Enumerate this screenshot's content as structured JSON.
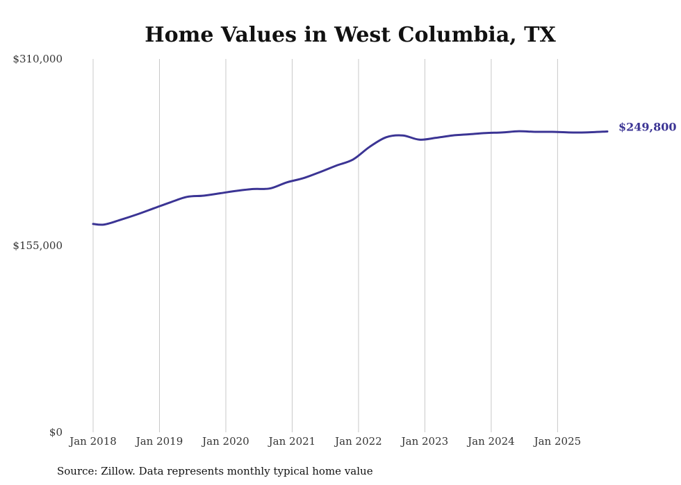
{
  "chart_data": {
    "type": "line",
    "title": "Home Values in West Columbia, TX",
    "xlabel": "",
    "ylabel": "",
    "ylim": [
      0,
      310000
    ],
    "yticks": [
      {
        "value": 0,
        "label": "$0"
      },
      {
        "value": 155000,
        "label": "$155,000"
      },
      {
        "value": 310000,
        "label": "$310,000"
      }
    ],
    "xticks": [
      {
        "value": "2018-01",
        "label": "Jan 2018"
      },
      {
        "value": "2019-01",
        "label": "Jan 2019"
      },
      {
        "value": "2020-01",
        "label": "Jan 2020"
      },
      {
        "value": "2021-01",
        "label": "Jan 2021"
      },
      {
        "value": "2022-01",
        "label": "Jan 2022"
      },
      {
        "value": "2023-01",
        "label": "Jan 2023"
      },
      {
        "value": "2024-01",
        "label": "Jan 2024"
      },
      {
        "value": "2025-01",
        "label": "Jan 2025"
      }
    ],
    "xlim": [
      "2018-01",
      "2025-10"
    ],
    "grid": "vertical",
    "line_color": "#3b3494",
    "end_label": "$249,800",
    "series": [
      {
        "values": [
          {
            "x": "2018-01",
            "y": 173000
          },
          {
            "x": "2018-03",
            "y": 172500
          },
          {
            "x": "2018-06",
            "y": 176500
          },
          {
            "x": "2018-09",
            "y": 181000
          },
          {
            "x": "2018-12",
            "y": 186000
          },
          {
            "x": "2019-03",
            "y": 191000
          },
          {
            "x": "2019-06",
            "y": 195500
          },
          {
            "x": "2019-09",
            "y": 196500
          },
          {
            "x": "2019-12",
            "y": 198500
          },
          {
            "x": "2020-03",
            "y": 200500
          },
          {
            "x": "2020-06",
            "y": 202000
          },
          {
            "x": "2020-09",
            "y": 202500
          },
          {
            "x": "2020-12",
            "y": 207500
          },
          {
            "x": "2021-03",
            "y": 211000
          },
          {
            "x": "2021-06",
            "y": 216000
          },
          {
            "x": "2021-09",
            "y": 221500
          },
          {
            "x": "2021-12",
            "y": 226500
          },
          {
            "x": "2022-03",
            "y": 237000
          },
          {
            "x": "2022-06",
            "y": 245000
          },
          {
            "x": "2022-09",
            "y": 246500
          },
          {
            "x": "2022-12",
            "y": 243000
          },
          {
            "x": "2023-03",
            "y": 244500
          },
          {
            "x": "2023-06",
            "y": 246500
          },
          {
            "x": "2023-09",
            "y": 247500
          },
          {
            "x": "2023-12",
            "y": 248500
          },
          {
            "x": "2024-03",
            "y": 249000
          },
          {
            "x": "2024-06",
            "y": 250000
          },
          {
            "x": "2024-09",
            "y": 249500
          },
          {
            "x": "2024-12",
            "y": 249500
          },
          {
            "x": "2025-03",
            "y": 249000
          },
          {
            "x": "2025-06",
            "y": 249000
          },
          {
            "x": "2025-10",
            "y": 249800
          }
        ]
      }
    ]
  },
  "footer": {
    "source": "Source: Zillow. Data represents monthly typical home value"
  }
}
